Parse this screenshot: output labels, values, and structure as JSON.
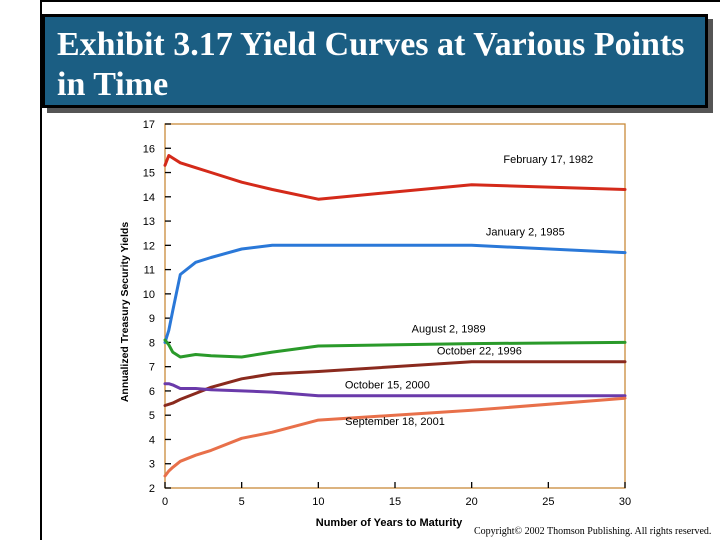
{
  "title": "Exhibit 3.17  Yield Curves at Various Points in Time",
  "copyright": "Copyright© 2002 Thomson Publishing. All rights reserved.",
  "chart_data": {
    "type": "line",
    "xlabel": "Number of Years to Maturity",
    "ylabel": "Annualized Treasury Security Yields",
    "xlim": [
      0,
      30
    ],
    "ylim": [
      2,
      17
    ],
    "xticks": [
      0,
      5,
      10,
      15,
      20,
      25,
      30
    ],
    "yticks": [
      2,
      3,
      4,
      5,
      6,
      7,
      8,
      9,
      10,
      11,
      12,
      13,
      14,
      15,
      16,
      17
    ],
    "grid": false,
    "series": [
      {
        "name": "February 17, 1982",
        "color": "#d42a1a",
        "label_x": 25,
        "label_y": 15.4,
        "x": [
          0,
          0.25,
          0.5,
          1,
          2,
          3,
          5,
          7,
          10,
          20,
          30
        ],
        "y": [
          15.3,
          15.7,
          15.6,
          15.4,
          15.2,
          15.0,
          14.6,
          14.3,
          13.9,
          14.5,
          14.3
        ]
      },
      {
        "name": "January 2, 1985",
        "color": "#2a78d8",
        "label_x": 23.5,
        "label_y": 12.4,
        "x": [
          0,
          0.25,
          0.5,
          1,
          2,
          3,
          5,
          7,
          10,
          20,
          30
        ],
        "y": [
          8.0,
          8.5,
          9.3,
          10.8,
          11.3,
          11.5,
          11.85,
          12.0,
          12.0,
          12.0,
          11.7
        ]
      },
      {
        "name": "August 2, 1989",
        "color": "#2a9a2a",
        "label_x": 18.5,
        "label_y": 8.4,
        "x": [
          0,
          0.25,
          0.5,
          1,
          2,
          3,
          5,
          7,
          10,
          20,
          30
        ],
        "y": [
          8.1,
          7.9,
          7.6,
          7.4,
          7.5,
          7.45,
          7.4,
          7.6,
          7.85,
          7.95,
          8.0
        ]
      },
      {
        "name": "October 22, 1996",
        "color": "#8a2a1e",
        "label_x": 20.5,
        "label_y": 7.5,
        "x": [
          0,
          0.25,
          0.5,
          1,
          2,
          3,
          5,
          7,
          10,
          20,
          30
        ],
        "y": [
          5.4,
          5.45,
          5.5,
          5.65,
          5.9,
          6.15,
          6.5,
          6.7,
          6.8,
          7.2,
          7.2
        ]
      },
      {
        "name": "October 15, 2000",
        "color": "#6a3aaa",
        "label_x": 14.5,
        "label_y": 6.1,
        "x": [
          0,
          0.25,
          0.5,
          1,
          2,
          3,
          5,
          7,
          10,
          20,
          30
        ],
        "y": [
          6.3,
          6.3,
          6.25,
          6.1,
          6.1,
          6.05,
          6.0,
          5.95,
          5.8,
          5.8,
          5.8
        ]
      },
      {
        "name": "September 18, 2001",
        "color": "#e8704a",
        "label_x": 15,
        "label_y": 4.6,
        "x": [
          0,
          0.25,
          0.5,
          1,
          2,
          3,
          5,
          7,
          10,
          20,
          30
        ],
        "y": [
          2.5,
          2.7,
          2.85,
          3.1,
          3.35,
          3.55,
          4.05,
          4.3,
          4.8,
          5.2,
          5.7
        ]
      }
    ]
  }
}
